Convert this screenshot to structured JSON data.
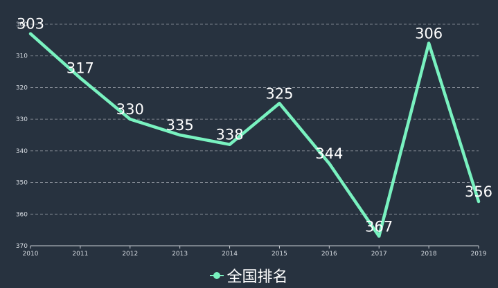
{
  "chart_data": {
    "type": "line",
    "x": [
      "2010",
      "2011",
      "2012",
      "2013",
      "2014",
      "2015",
      "2016",
      "2017",
      "2018",
      "2019"
    ],
    "series": [
      {
        "name": "全国排名",
        "values": [
          303,
          317,
          330,
          335,
          338,
          325,
          344,
          367,
          306,
          356
        ]
      }
    ],
    "yticks": [
      300,
      310,
      320,
      330,
      340,
      350,
      360,
      370
    ],
    "ylim": [
      300,
      370
    ],
    "y_inverted": true,
    "grid": true,
    "legend_position": "bottom-center",
    "colors": {
      "line": "#79f2c0",
      "background": "#27323f"
    }
  }
}
